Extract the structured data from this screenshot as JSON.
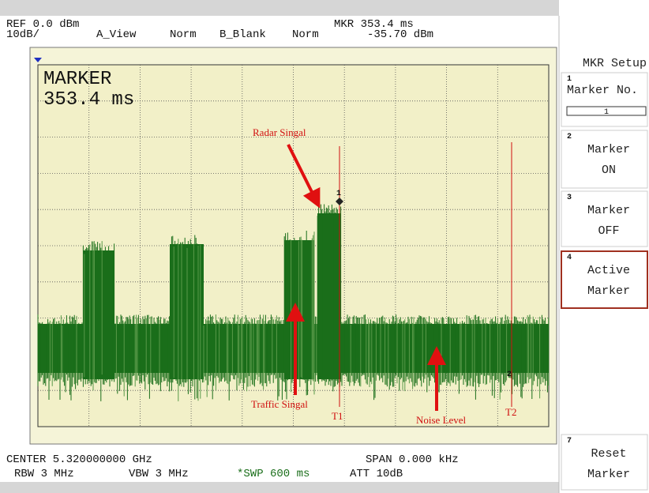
{
  "header": {
    "ref": "REF 0.0 dBm",
    "scale": "10dB/",
    "a_view": "A_View",
    "norm_a": "Norm",
    "b_blank": "B_Blank",
    "norm_b": "Norm",
    "mkr": "MKR 353.4 ms",
    "mkr_level": "-35.70 dBm"
  },
  "marker_box": {
    "title": "MARKER",
    "value": "353.4 ms"
  },
  "annotations": {
    "radar": "Radar Singal",
    "traffic": "Traffic Singal",
    "noise": "Noise Level",
    "t1": "T1",
    "t2": "T2",
    "marker_number": "1",
    "t2_number": "2"
  },
  "footer": {
    "center": "CENTER 5.320000000 GHz",
    "span": "SPAN 0.000 kHz",
    "rbw": "RBW 3 MHz",
    "vbw": "VBW 3 MHz",
    "swp": "*SWP 600 ms",
    "att": "ATT 10dB"
  },
  "softkeys": {
    "title": "MKR Setup",
    "keys": [
      {
        "number": "1",
        "lines": [
          "Marker No."
        ],
        "field": "1"
      },
      {
        "number": "2",
        "lines": [
          "Marker",
          "ON"
        ]
      },
      {
        "number": "3",
        "lines": [
          "Marker",
          "OFF"
        ]
      },
      {
        "number": "4",
        "lines": [
          "Active",
          "Marker"
        ]
      },
      {
        "number": "7",
        "lines": [
          "Reset",
          "Marker"
        ]
      }
    ]
  }
}
